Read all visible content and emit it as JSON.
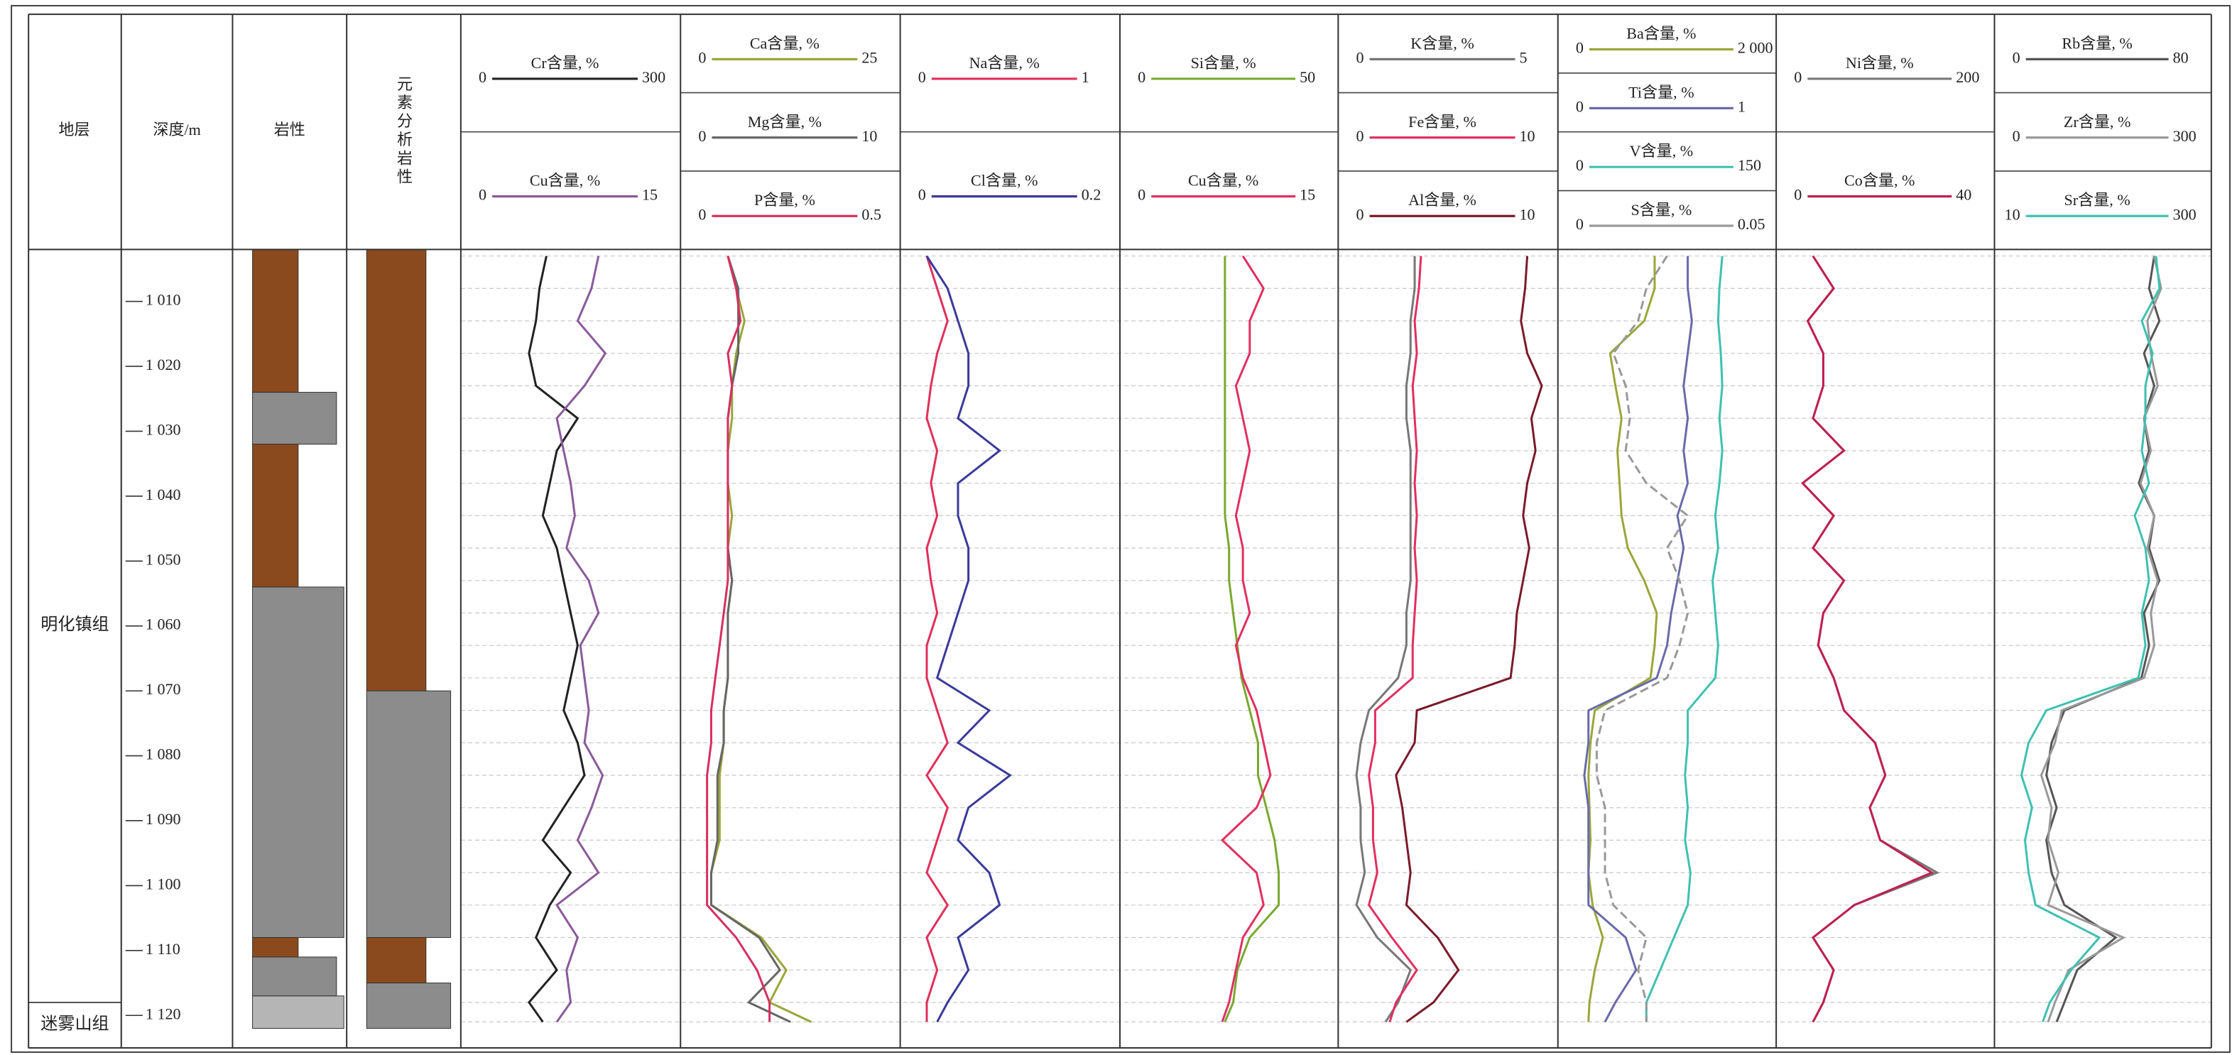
{
  "headers": {
    "stratum": "地层",
    "depth": "深度/m",
    "lithology": "岩性",
    "element_lithology": "元素分析岩性"
  },
  "chart_data": {
    "type": "well-log",
    "ylim": [
      1002,
      1125
    ],
    "yticks": [
      {
        "value": 1010,
        "label": "1 010"
      },
      {
        "value": 1020,
        "label": "1 020"
      },
      {
        "value": 1030,
        "label": "1 030"
      },
      {
        "value": 1040,
        "label": "1 040"
      },
      {
        "value": 1050,
        "label": "1 050"
      },
      {
        "value": 1060,
        "label": "1 060"
      },
      {
        "value": 1070,
        "label": "1 070"
      },
      {
        "value": 1080,
        "label": "1 080"
      },
      {
        "value": 1090,
        "label": "1 090"
      },
      {
        "value": 1100,
        "label": "1 100"
      },
      {
        "value": 1110,
        "label": "1 110"
      },
      {
        "value": 1120,
        "label": "1 120"
      }
    ],
    "depth": [
      1003,
      1008,
      1013,
      1018,
      1023,
      1028,
      1033,
      1038,
      1043,
      1048,
      1053,
      1058,
      1063,
      1068,
      1073,
      1078,
      1083,
      1088,
      1093,
      1098,
      1103,
      1108,
      1113,
      1118,
      1121
    ],
    "strata": [
      {
        "name": "明化镇组",
        "top": 1002,
        "bottom": 1118
      },
      {
        "name": "迷雾山组",
        "top": 1118,
        "bottom": 1125
      }
    ],
    "lithology": [
      {
        "top": 1002,
        "bottom": 1024,
        "color": "#8b4a1e"
      },
      {
        "top": 1024,
        "bottom": 1032,
        "color": "#8c8c8c"
      },
      {
        "top": 1032,
        "bottom": 1054,
        "color": "#8b4a1e"
      },
      {
        "top": 1054,
        "bottom": 1108,
        "color": "#8c8c8c"
      },
      {
        "top": 1108,
        "bottom": 1111,
        "color": "#8b4a1e"
      },
      {
        "top": 1111,
        "bottom": 1117,
        "color": "#8c8c8c"
      },
      {
        "top": 1117,
        "bottom": 1122,
        "color": "#b5b5b5"
      }
    ],
    "element_lithology": [
      {
        "top": 1002,
        "bottom": 1070,
        "color": "#8b4a1e"
      },
      {
        "top": 1070,
        "bottom": 1108,
        "color": "#8c8c8c"
      },
      {
        "top": 1108,
        "bottom": 1115,
        "color": "#8b4a1e"
      },
      {
        "top": 1115,
        "bottom": 1122,
        "color": "#8c8c8c"
      }
    ],
    "tracks": [
      {
        "series": [
          {
            "name": "Cr含量, %",
            "color": "#222222",
            "xlim": [
              0,
              300
            ],
            "xticks": [
              0,
              300
            ],
            "values": [
              115,
              105,
              100,
              90,
              100,
              160,
              130,
              120,
              110,
              130,
              140,
              150,
              160,
              150,
              140,
              160,
              170,
              140,
              110,
              150,
              120,
              100,
              130,
              90,
              110
            ]
          },
          {
            "name": "Cu含量, %",
            "color": "#8a5a9a",
            "xlim": [
              0,
              15
            ],
            "xticks": [
              0,
              15
            ],
            "values": [
              9.5,
              9,
              8,
              10,
              8.5,
              6.5,
              7,
              7.5,
              7.8,
              7.2,
              8.8,
              9.5,
              8.2,
              8.5,
              8.8,
              8.5,
              9.8,
              9,
              8,
              9.5,
              6.5,
              8,
              7.2,
              7.5,
              6.5
            ]
          }
        ]
      },
      {
        "series": [
          {
            "name": "Ca含量, %",
            "color": "#9aa63a",
            "xlim": [
              0,
              25
            ],
            "xticks": [
              0,
              25
            ],
            "values": [
              5,
              6,
              7,
              6,
              5.5,
              5.5,
              5,
              5,
              5.5,
              5,
              5.5,
              5,
              5,
              5,
              4.5,
              4.5,
              4,
              4,
              4,
              3,
              3,
              9,
              12,
              10,
              15
            ]
          },
          {
            "name": "Mg含量, %",
            "color": "#666666",
            "xlim": [
              0,
              10
            ],
            "xticks": [
              0,
              10
            ],
            "values": [
              2,
              2.5,
              2.5,
              2.5,
              2.2,
              2,
              2,
              2,
              2,
              2,
              2.2,
              2,
              2,
              2,
              1.8,
              1.8,
              1.5,
              1.5,
              1.5,
              1.2,
              1.2,
              3.5,
              4.5,
              3,
              5
            ]
          },
          {
            "name": "P含量, %",
            "color": "#d63060",
            "xlim": [
              0,
              0.5
            ],
            "xticks": [
              0,
              0.5
            ],
            "values": [
              0.1,
              0.12,
              0.13,
              0.1,
              0.11,
              0.1,
              0.1,
              0.1,
              0.1,
              0.1,
              0.1,
              0.09,
              0.08,
              0.07,
              0.06,
              0.06,
              0.05,
              0.05,
              0.05,
              0.05,
              0.05,
              0.12,
              0.17,
              0.2,
              0.2
            ]
          }
        ]
      },
      {
        "series": [
          {
            "name": "Na含量, %",
            "color": "#e0305a",
            "xlim": [
              0,
              1
            ],
            "xticks": [
              0,
              1
            ],
            "values": [
              0.1,
              0.15,
              0.2,
              0.15,
              0.12,
              0.1,
              0.15,
              0.12,
              0.15,
              0.1,
              0.12,
              0.15,
              0.1,
              0.1,
              0.15,
              0.2,
              0.1,
              0.2,
              0.15,
              0.1,
              0.2,
              0.1,
              0.15,
              0.1,
              0.1
            ]
          },
          {
            "name": "Cl含量, %",
            "color": "#3a3a9a",
            "xlim": [
              0,
              0.2
            ],
            "xticks": [
              0,
              0.2
            ],
            "values": [
              0.02,
              0.04,
              0.05,
              0.06,
              0.06,
              0.05,
              0.09,
              0.05,
              0.05,
              0.06,
              0.06,
              0.05,
              0.04,
              0.03,
              0.08,
              0.05,
              0.1,
              0.06,
              0.05,
              0.08,
              0.09,
              0.05,
              0.06,
              0.04,
              0.03
            ]
          }
        ]
      },
      {
        "series": [
          {
            "name": "Si含量, %",
            "color": "#7aa830",
            "xlim": [
              0,
              50
            ],
            "xticks": [
              0,
              50
            ],
            "values": [
              24,
              24,
              24,
              24,
              24,
              24,
              24,
              24,
              24,
              25,
              25,
              26,
              27,
              28,
              30,
              32,
              32,
              34,
              36,
              37,
              37,
              30,
              27,
              26,
              24
            ]
          },
          {
            "name": "Cu含量, %",
            "color": "#e03060",
            "xlim": [
              0,
              15
            ],
            "xticks": [
              0,
              15
            ],
            "values": [
              8.5,
              10,
              9,
              9,
              8,
              8.5,
              9,
              8.5,
              8,
              8.5,
              8.5,
              9,
              8,
              8.5,
              9.5,
              10,
              10.5,
              9.5,
              7,
              9.5,
              10,
              8.5,
              8,
              7.5,
              7
            ]
          }
        ]
      },
      {
        "series": [
          {
            "name": "K含量, %",
            "color": "#777777",
            "xlim": [
              0,
              5
            ],
            "xticks": [
              0,
              5
            ],
            "values": [
              1.7,
              1.7,
              1.6,
              1.6,
              1.5,
              1.5,
              1.6,
              1.6,
              1.6,
              1.6,
              1.6,
              1.5,
              1.5,
              1.3,
              0.6,
              0.4,
              0.3,
              0.4,
              0.4,
              0.5,
              0.3,
              0.8,
              1.6,
              1.3,
              1
            ]
          },
          {
            "name": "Fe含量, %",
            "color": "#e03060",
            "xlim": [
              0,
              10
            ],
            "xticks": [
              0,
              10
            ],
            "values": [
              3.7,
              3.6,
              3.4,
              3.5,
              3.3,
              3.4,
              3.5,
              3.4,
              3.5,
              3.4,
              3.5,
              3.4,
              3.3,
              3.3,
              1.5,
              1.5,
              1.2,
              1.4,
              1.4,
              1.6,
              1.2,
              2.3,
              3.5,
              2.5,
              2.2
            ]
          },
          {
            "name": "Al含量, %",
            "color": "#7a1a2a",
            "xlim": [
              0,
              10
            ],
            "xticks": [
              0,
              10
            ],
            "values": [
              8.8,
              8.7,
              8.5,
              8.8,
              9.5,
              9,
              9.2,
              8.8,
              8.6,
              8.9,
              8.6,
              8.3,
              8.2,
              8,
              3.5,
              3.4,
              2.5,
              2.8,
              3,
              3.2,
              3,
              4.5,
              5.5,
              4.3,
              3
            ]
          }
        ]
      },
      {
        "series": [
          {
            "name": "Ba含量, %",
            "color": "#9aa63a",
            "xlim": [
              0,
              2000
            ],
            "xticks": [
              0,
              {
                "value": 2000,
                "label": "2 000"
              }
            ],
            "values": [
              880,
              880,
              780,
              450,
              500,
              560,
              520,
              540,
              560,
              620,
              780,
              900,
              880,
              840,
              300,
              260,
              240,
              250,
              260,
              240,
              280,
              380,
              300,
              250,
              240
            ]
          },
          {
            "name": "Ti含量, %",
            "color": "#6a6aa8",
            "xlim": [
              0,
              1
            ],
            "xticks": [
              0,
              1
            ],
            "values": [
              0.6,
              0.6,
              0.62,
              0.6,
              0.58,
              0.6,
              0.58,
              0.6,
              0.55,
              0.58,
              0.55,
              0.52,
              0.5,
              0.45,
              0.12,
              0.12,
              0.1,
              0.12,
              0.12,
              0.12,
              0.12,
              0.3,
              0.35,
              0.25,
              0.2
            ]
          },
          {
            "name": "V含量, %",
            "color": "#40c0b0",
            "xlim": [
              0,
              150
            ],
            "xticks": [
              0,
              150
            ],
            "values": [
              115,
              113,
              112,
              114,
              115,
              113,
              115,
              113,
              110,
              112,
              108,
              110,
              112,
              110,
              90,
              90,
              88,
              90,
              88,
              92,
              90,
              80,
              70,
              60,
              60
            ]
          },
          {
            "name": "S含量, %",
            "color": "#999999",
            "xlim": [
              0,
              0.05
            ],
            "xticks": [
              0,
              0.05
            ],
            "values": [
              0.025,
              0.02,
              0.018,
              0.012,
              0.015,
              0.016,
              0.015,
              0.02,
              0.03,
              0.025,
              0.028,
              0.03,
              0.028,
              0.025,
              0.01,
              0.008,
              0.008,
              0.01,
              0.01,
              0.01,
              0.012,
              0.02,
              0.018,
              0.02,
              0.02
            ]
          }
        ]
      },
      {
        "series": [
          {
            "name": "Ni含量, %",
            "color": "#777777",
            "xlim": [
              0,
              200
            ],
            "xticks": [
              0,
              200
            ],
            "values": [
              30,
              50,
              25,
              40,
              40,
              30,
              60,
              20,
              50,
              30,
              60,
              40,
              35,
              50,
              60,
              90,
              100,
              85,
              95,
              150,
              70,
              30,
              50,
              40,
              30
            ]
          },
          {
            "name": "Co含量, %",
            "color": "#c02050",
            "xlim": [
              0,
              40
            ],
            "xticks": [
              0,
              40
            ],
            "values": [
              6,
              10,
              5,
              8,
              8,
              6,
              12,
              4,
              10,
              6,
              12,
              8,
              7,
              10,
              12,
              18,
              20,
              17,
              19,
              29,
              14,
              6,
              10,
              8,
              6
            ]
          }
        ]
      },
      {
        "series": [
          {
            "name": "Rb含量, %",
            "color": "#555555",
            "xlim": [
              0,
              80
            ],
            "xticks": [
              0,
              80
            ],
            "values": [
              60,
              58,
              62,
              56,
              60,
              56,
              58,
              54,
              60,
              58,
              62,
              56,
              58,
              55,
              25,
              20,
              18,
              22,
              18,
              20,
              25,
              45,
              30,
              25,
              22
            ]
          },
          {
            "name": "Zr含量, %",
            "color": "#999999",
            "xlim": [
              0,
              300
            ],
            "xticks": [
              0,
              300
            ],
            "values": [
              225,
              235,
              215,
              220,
              230,
              210,
              220,
              205,
              225,
              215,
              230,
              220,
              225,
              210,
              90,
              80,
              60,
              75,
              70,
              85,
              70,
              180,
              100,
              80,
              70
            ]
          },
          {
            "name": "Sr含量, %",
            "color": "#40c0b0",
            "xlim": [
              10,
              300
            ],
            "xticks": [
              10,
              300
            ],
            "values": [
              230,
              235,
              210,
              225,
              215,
              215,
              210,
              220,
              200,
              215,
              220,
              210,
              215,
              205,
              75,
              50,
              40,
              55,
              45,
              50,
              60,
              150,
              110,
              80,
              70
            ]
          }
        ]
      }
    ]
  }
}
